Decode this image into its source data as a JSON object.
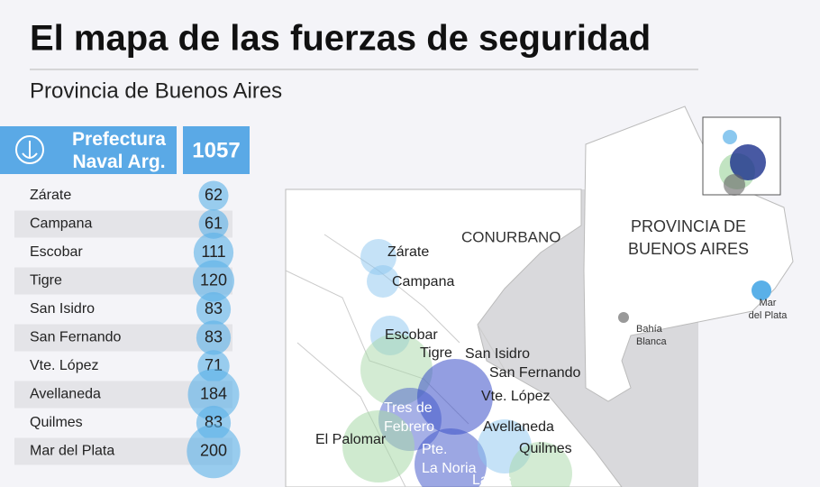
{
  "header": {
    "title": "El mapa de las fuerzas de seguridad",
    "subtitle": "Provincia de Buenos Aires"
  },
  "table": {
    "force": "Prefectura Naval Arg.",
    "total": 1057,
    "rows": [
      [
        "Zárate",
        62
      ],
      [
        "Campana",
        61
      ],
      [
        "Escobar",
        111
      ],
      [
        "Tigre",
        120
      ],
      [
        "San Isidro",
        83
      ],
      [
        "San Fernando",
        83
      ],
      [
        "Vte. López",
        71
      ],
      [
        "Avellaneda",
        184
      ],
      [
        "Quilmes",
        83
      ],
      [
        "Mar del Plata",
        200
      ]
    ]
  },
  "map": {
    "region": "CONURBANO",
    "places": [
      [
        "Zárate"
      ],
      [
        "Campana"
      ],
      [
        "Escobar"
      ],
      [
        "Tigre"
      ],
      [
        "San Isidro"
      ],
      [
        "San Fernando"
      ],
      [
        "Vte. López"
      ],
      [
        "Tres de",
        "Febrero"
      ],
      [
        "Avellaneda"
      ],
      [
        "El Palomar"
      ],
      [
        "Quilmes"
      ],
      [
        "Pte.",
        "La Noria"
      ],
      [
        "Lanús"
      ]
    ],
    "inset": {
      "province": [
        "PROVINCIA DE",
        "BUENOS AIRES"
      ],
      "cities": [
        [
          "Mar",
          "del Plata"
        ],
        [
          "Bahía",
          "Blanca"
        ]
      ]
    }
  }
}
